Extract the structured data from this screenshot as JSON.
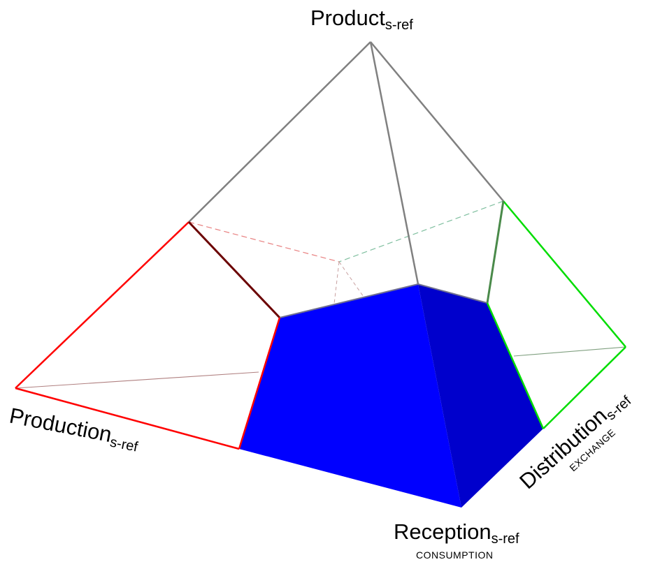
{
  "labels": {
    "product": {
      "main": "Product",
      "sub": "s-ref"
    },
    "production": {
      "main": "Production",
      "sub": "s-ref"
    },
    "distribution": {
      "main": "Distribution",
      "sub": "s-ref",
      "caption": "EXCHANGE"
    },
    "reception": {
      "main": "Reception",
      "sub": "s-ref",
      "caption": "CONSUMPTION"
    }
  },
  "colors": {
    "production_edges": "#ff0000",
    "distribution_edges": "#00dd00",
    "product_edges": "#808080",
    "solid_front_face": "#0000ff",
    "solid_side_face": "#0000cc",
    "hidden_red": "#e88080",
    "hidden_green": "#7fbf9f"
  }
}
